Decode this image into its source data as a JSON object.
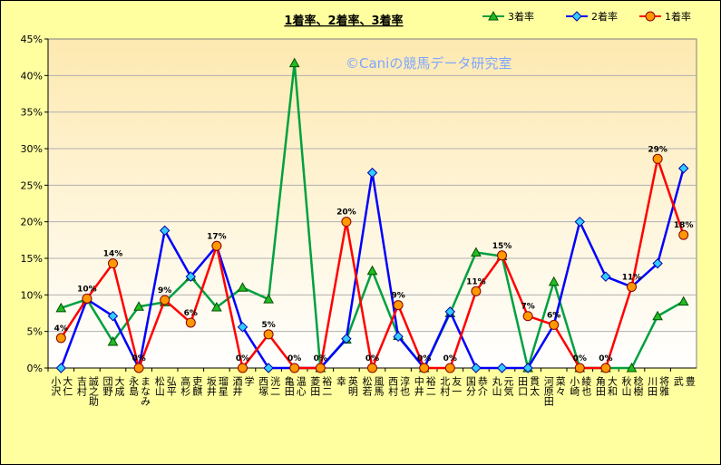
{
  "chart_data": {
    "type": "line",
    "title": "1着率、2着率、3着率",
    "watermark": "©Caniの競馬データ研究室",
    "ylim": [
      0,
      45
    ],
    "yticks": [
      "0%",
      "5%",
      "10%",
      "15%",
      "20%",
      "25%",
      "30%",
      "35%",
      "40%",
      "45%"
    ],
    "legend_position": "top-right",
    "categories": [
      "小沢 大仁",
      "吉村 誠之助",
      "団野 大成",
      "永島 まなみ",
      "松山 弘平",
      "高杉 吏麒",
      "坂井 瑠星",
      "酒井 学",
      "西塚 洸二",
      "亀田 温心",
      "菱田 裕二",
      "幸 英明",
      "松若 風馬",
      "西村 淳也",
      "中井 裕二",
      "北村 友一",
      "国分 恭介",
      "丸山 元気",
      "田口 貫太",
      "河原田 菜々",
      "小崎 綾也",
      "角田 大和",
      "秋山 稔樹",
      "川田 将雅",
      "武 豊"
    ],
    "series": [
      {
        "name": "3着率",
        "color": "#00a040",
        "marker": "triangle",
        "fill": "#22bb22",
        "values": [
          8.2,
          9.4,
          3.6,
          8.4,
          9.0,
          12.5,
          8.3,
          11.0,
          9.4,
          41.7,
          0,
          3.9,
          13.3,
          4.4,
          0,
          7.5,
          15.8,
          15.3,
          0,
          11.8,
          0,
          0,
          0,
          7.1,
          9.1
        ]
      },
      {
        "name": "2着率",
        "color": "#0000ff",
        "marker": "diamond",
        "fill": "#33ccff",
        "values": [
          0,
          9.4,
          7.1,
          0,
          18.8,
          12.5,
          16.7,
          5.6,
          0,
          0,
          0,
          4.0,
          26.7,
          4.3,
          0,
          7.7,
          0,
          0,
          0,
          5.9,
          20.0,
          12.5,
          11.1,
          14.3,
          27.3
        ]
      },
      {
        "name": "1着率",
        "color": "#ff0000",
        "marker": "circle",
        "fill": "#ff9900",
        "values": [
          4.1,
          9.5,
          14.3,
          0,
          9.3,
          6.2,
          16.7,
          0,
          4.6,
          0,
          0,
          20.0,
          0,
          8.6,
          0,
          0,
          10.5,
          15.4,
          7.1,
          5.9,
          0,
          0,
          11.1,
          28.6,
          18.2
        ]
      }
    ],
    "data_labels": [
      "4%",
      "10%",
      "14%",
      "0%",
      "9%",
      "6%",
      "17%",
      "0%",
      "5%",
      "0%",
      "0%",
      "20%",
      "0%",
      "9%",
      "0%",
      "0%",
      "11%",
      "15%",
      "7%",
      "6%",
      "0%",
      "0%",
      "11%",
      "29%",
      "18%"
    ]
  },
  "legend_order": [
    "3着率",
    "2着率",
    "1着率"
  ]
}
